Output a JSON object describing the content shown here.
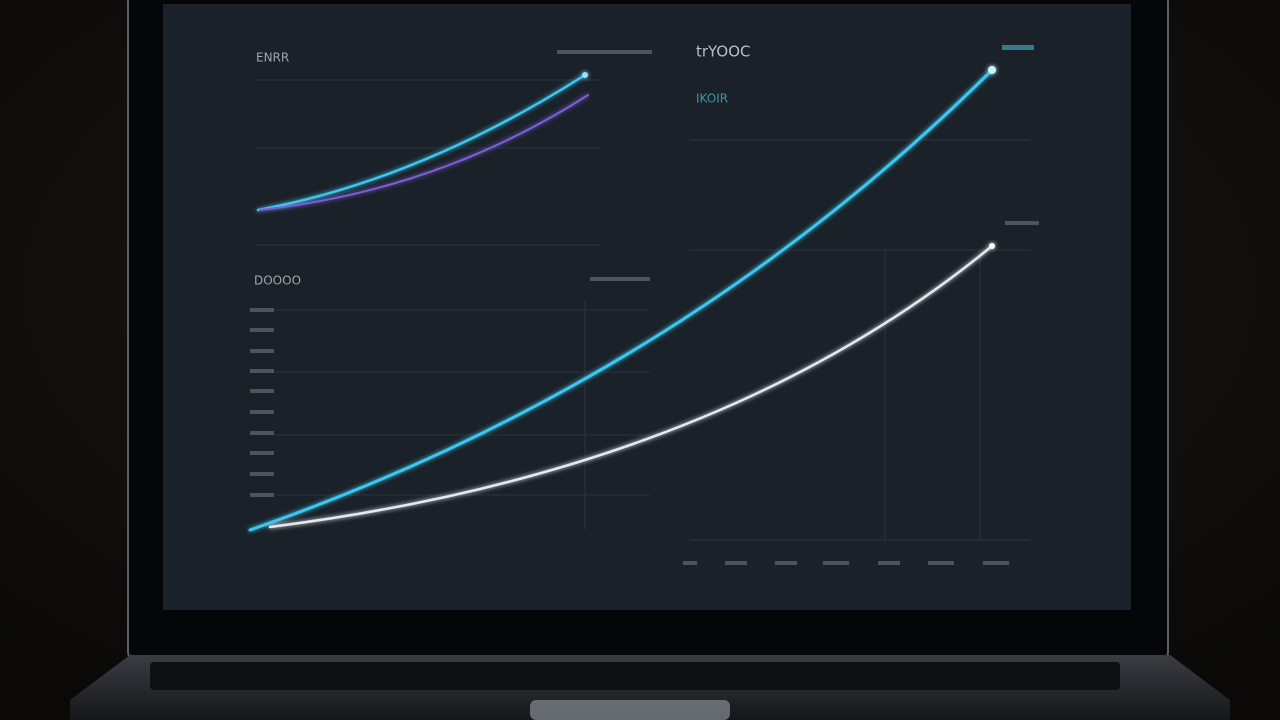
{
  "screen": {
    "panels": [
      {
        "title": "ENRR"
      },
      {
        "title": "trYOOC",
        "subtitle": "IKOIR"
      },
      {
        "title": "DOOOO"
      }
    ]
  }
}
